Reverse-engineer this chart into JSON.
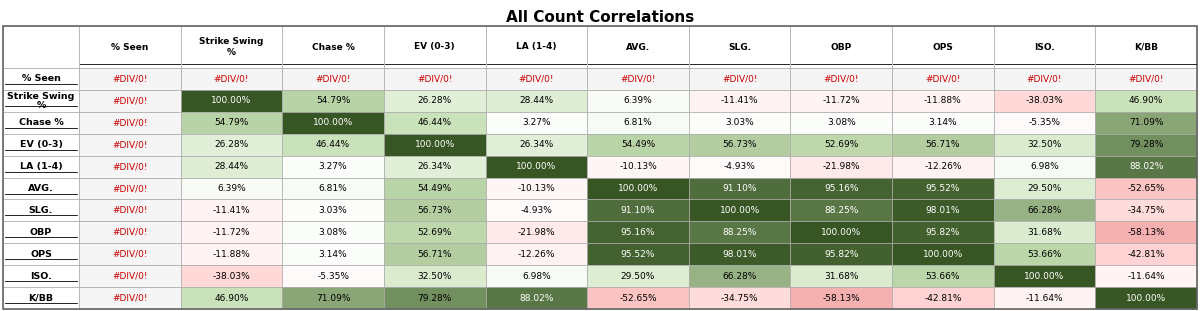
{
  "title": "All Count Correlations",
  "col_headers": [
    "% Seen",
    "Strike Swing\n%",
    "Chase %",
    "EV (0-3)",
    "LA (1-4)",
    "AVG.",
    "SLG.",
    "OBP",
    "OPS",
    "ISO.",
    "K/BB"
  ],
  "row_headers": [
    "% Seen",
    "Strike Swing\n%",
    "Chase %",
    "EV (0-3)",
    "LA (1-4)",
    "AVG.",
    "SLG.",
    "OBP",
    "OPS",
    "ISO.",
    "K/BB"
  ],
  "values": [
    [
      "#DIV/0!",
      "#DIV/0!",
      "#DIV/0!",
      "#DIV/0!",
      "#DIV/0!",
      "#DIV/0!",
      "#DIV/0!",
      "#DIV/0!",
      "#DIV/0!",
      "#DIV/0!",
      "#DIV/0!"
    ],
    [
      "#DIV/0!",
      "100.00%",
      "54.79%",
      "26.28%",
      "28.44%",
      "6.39%",
      "-11.41%",
      "-11.72%",
      "-11.88%",
      "-38.03%",
      "46.90%"
    ],
    [
      "#DIV/0!",
      "54.79%",
      "100.00%",
      "46.44%",
      "3.27%",
      "6.81%",
      "3.03%",
      "3.08%",
      "3.14%",
      "-5.35%",
      "71.09%"
    ],
    [
      "#DIV/0!",
      "26.28%",
      "46.44%",
      "100.00%",
      "26.34%",
      "54.49%",
      "56.73%",
      "52.69%",
      "56.71%",
      "32.50%",
      "79.28%"
    ],
    [
      "#DIV/0!",
      "28.44%",
      "3.27%",
      "26.34%",
      "100.00%",
      "-10.13%",
      "-4.93%",
      "-21.98%",
      "-12.26%",
      "6.98%",
      "88.02%"
    ],
    [
      "#DIV/0!",
      "6.39%",
      "6.81%",
      "54.49%",
      "-10.13%",
      "100.00%",
      "91.10%",
      "95.16%",
      "95.52%",
      "29.50%",
      "-52.65%"
    ],
    [
      "#DIV/0!",
      "-11.41%",
      "3.03%",
      "56.73%",
      "-4.93%",
      "91.10%",
      "100.00%",
      "88.25%",
      "98.01%",
      "66.28%",
      "-34.75%"
    ],
    [
      "#DIV/0!",
      "-11.72%",
      "3.08%",
      "52.69%",
      "-21.98%",
      "95.16%",
      "88.25%",
      "100.00%",
      "95.82%",
      "31.68%",
      "-58.13%"
    ],
    [
      "#DIV/0!",
      "-11.88%",
      "3.14%",
      "56.71%",
      "-12.26%",
      "95.52%",
      "98.01%",
      "95.82%",
      "100.00%",
      "53.66%",
      "-42.81%"
    ],
    [
      "#DIV/0!",
      "-38.03%",
      "-5.35%",
      "32.50%",
      "6.98%",
      "29.50%",
      "66.28%",
      "31.68%",
      "53.66%",
      "100.00%",
      "-11.64%"
    ],
    [
      "#DIV/0!",
      "46.90%",
      "71.09%",
      "79.28%",
      "88.02%",
      "-52.65%",
      "-34.75%",
      "-58.13%",
      "-42.81%",
      "-11.64%",
      "100.00%"
    ]
  ],
  "numeric_values": [
    [
      null,
      null,
      null,
      null,
      null,
      null,
      null,
      null,
      null,
      null,
      null
    ],
    [
      null,
      100.0,
      54.79,
      26.28,
      28.44,
      6.39,
      -11.41,
      -11.72,
      -11.88,
      -38.03,
      46.9
    ],
    [
      null,
      54.79,
      100.0,
      46.44,
      3.27,
      6.81,
      3.03,
      3.08,
      3.14,
      -5.35,
      71.09
    ],
    [
      null,
      26.28,
      46.44,
      100.0,
      26.34,
      54.49,
      56.73,
      52.69,
      56.71,
      32.5,
      79.28
    ],
    [
      null,
      28.44,
      3.27,
      26.34,
      100.0,
      -10.13,
      -4.93,
      -21.98,
      -12.26,
      6.98,
      88.02
    ],
    [
      null,
      6.39,
      6.81,
      54.49,
      -10.13,
      100.0,
      91.1,
      95.16,
      95.52,
      29.5,
      -52.65
    ],
    [
      null,
      -11.41,
      3.03,
      56.73,
      -4.93,
      91.1,
      100.0,
      88.25,
      98.01,
      66.28,
      -34.75
    ],
    [
      null,
      -11.72,
      3.08,
      52.69,
      -21.98,
      95.16,
      88.25,
      100.0,
      95.82,
      31.68,
      -58.13
    ],
    [
      null,
      -11.88,
      3.14,
      56.71,
      -12.26,
      95.52,
      98.01,
      95.82,
      100.0,
      53.66,
      -42.81
    ],
    [
      null,
      -38.03,
      -5.35,
      32.5,
      6.98,
      29.5,
      66.28,
      31.68,
      53.66,
      100.0,
      -11.64
    ],
    [
      null,
      46.9,
      71.09,
      79.28,
      88.02,
      -52.65,
      -34.75,
      -58.13,
      -42.81,
      -11.64,
      100.0
    ]
  ],
  "background_color": "#ffffff",
  "title_fontsize": 11,
  "header_fontsize": 6.5,
  "cell_fontsize": 6.5,
  "row_header_fontsize": 6.8
}
